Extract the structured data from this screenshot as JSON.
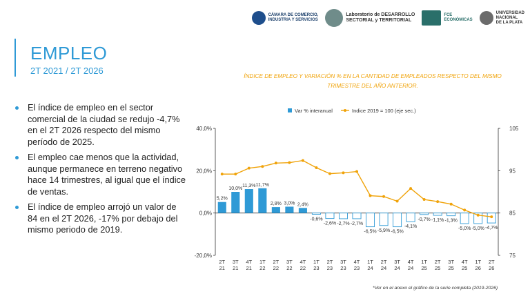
{
  "header": {
    "logos": [
      {
        "name": "camara-logo",
        "text": "CÁMARA DE COMERCIO,\nINDUSTRIA Y SERVICIOS"
      },
      {
        "name": "laboratorio-logo",
        "text": "Laboratorio de DESARROLLO\nSECTORIAL y TERRITORIAL"
      },
      {
        "name": "fce-logo",
        "text": "FCE\nECONÓMICAS"
      },
      {
        "name": "unlp-logo",
        "text": "UNIVERSIDAD\nNACIONAL\nDE LA PLATA"
      }
    ]
  },
  "title": "EMPLEO",
  "subtitle": "2T 2021 / 2T 2026",
  "chart_title": "ÍNDICE DE EMPLEO Y VARIACIÓN % EN LA CANTIDAD DE EMPLEADOS RESPECTO DEL MISMO TRIMESTRE DEL AÑO ANTERIOR.",
  "bullets": [
    "El índice de empleo en el sector comercial de la ciudad se redujo -4,7% en el 2T 2026 respecto del mismo período de 2025.",
    "El empleo cae menos que la actividad, aunque permanece en terreno negativo hace 14 trimestres, al igual que el índice de ventas.",
    "El índice de empleo arrojó un valor de 84 en el 2T 2026, -17% por debajo del mismo periodo de 2019."
  ],
  "footnote": "*Ver en el anexo el gráfico de la serie completa (2019-2026)",
  "colors": {
    "bar": "#2f9ad6",
    "line": "#f0a30a",
    "accent": "#2f9ad6"
  },
  "chart_data": {
    "type": "bar",
    "categories": [
      [
        "2T",
        "21"
      ],
      [
        "3T",
        "21"
      ],
      [
        "4T",
        "21"
      ],
      [
        "1T",
        "22"
      ],
      [
        "2T",
        "22"
      ],
      [
        "3T",
        "22"
      ],
      [
        "4T",
        "22"
      ],
      [
        "1T",
        "23"
      ],
      [
        "2T",
        "23"
      ],
      [
        "3T",
        "23"
      ],
      [
        "4T",
        "23"
      ],
      [
        "1T",
        "24"
      ],
      [
        "2T",
        "24"
      ],
      [
        "3T",
        "24"
      ],
      [
        "4T",
        "24"
      ],
      [
        "1T",
        "25"
      ],
      [
        "2T",
        "25"
      ],
      [
        "3T",
        "25"
      ],
      [
        "4T",
        "25"
      ],
      [
        "1T",
        "26"
      ],
      [
        "2T",
        "26"
      ]
    ],
    "series": [
      {
        "name": "Var % interanual",
        "axis": "left",
        "type": "bar",
        "values": [
          5.2,
          10.0,
          11.3,
          11.7,
          2.8,
          3.0,
          2.4,
          -0.6,
          -2.6,
          -2.7,
          -2.7,
          -6.5,
          -5.9,
          -6.5,
          -4.1,
          -0.7,
          -1.1,
          -1.3,
          -5.0,
          -5.0,
          -4.7
        ],
        "labels": [
          "5,2%",
          "10,0%",
          "11,3%",
          "11,7%",
          "2,8%",
          "3,0%",
          "2,4%",
          "-0,6%",
          "-2,6%",
          "-2,7%",
          "-2,7%",
          "-6,5%",
          "-5,9%",
          "-6,5%",
          "-4,1%",
          "-0,7%",
          "-1,1%",
          "-1,3%",
          "-5,0%",
          "-5,0%",
          "-4,7%"
        ]
      },
      {
        "name": "Indice 2019 = 100 (eje sec.)",
        "axis": "right",
        "type": "line",
        "values": [
          94.2,
          94.2,
          95.6,
          96.0,
          96.8,
          96.9,
          97.4,
          95.7,
          94.3,
          94.5,
          94.8,
          89.1,
          88.9,
          87.8,
          90.8,
          88.2,
          87.7,
          87.1,
          85.7,
          84.5,
          84.1
        ]
      }
    ],
    "y_left": {
      "min": -20,
      "max": 40,
      "ticks": [
        "40,0%",
        "20,0%",
        "0,0%",
        "-20,0%"
      ],
      "tick_values": [
        40,
        20,
        0,
        -20
      ]
    },
    "y_right": {
      "min": 75,
      "max": 105,
      "ticks": [
        "105",
        "95",
        "85",
        "75"
      ],
      "tick_values": [
        105,
        95,
        85,
        75
      ]
    },
    "legend_position": "top",
    "grid": false
  }
}
